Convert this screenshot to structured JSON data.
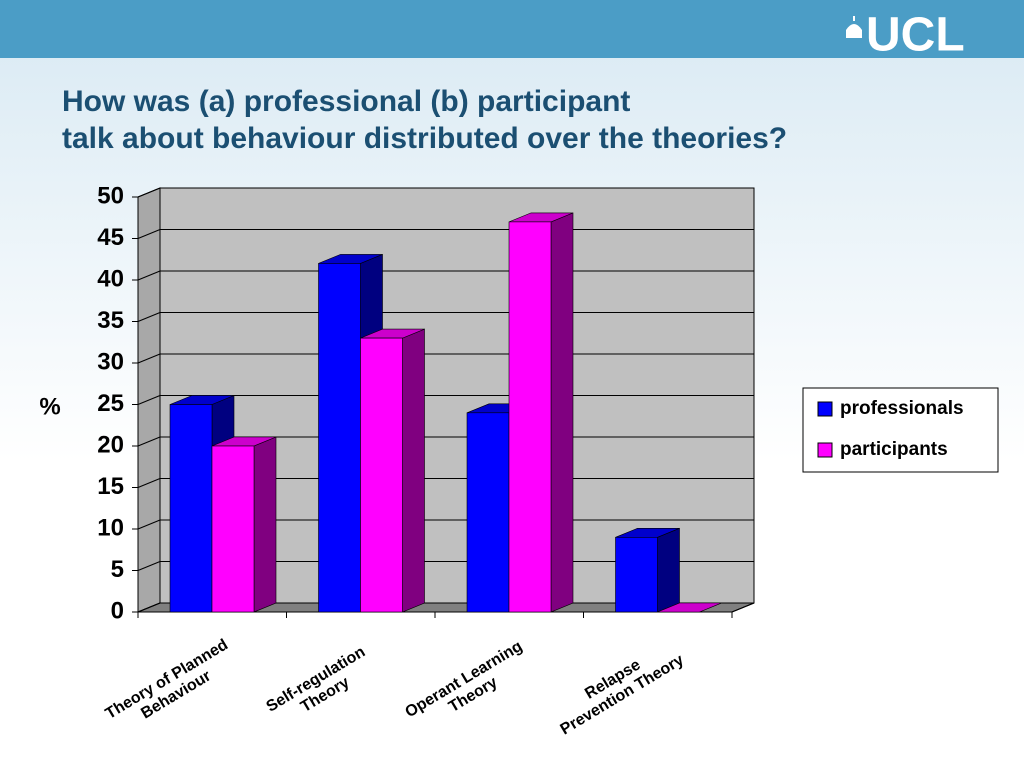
{
  "brand": "UCL",
  "chart_data": {
    "type": "bar",
    "title": "How was (a) professional (b) participant\ntalk about behaviour distributed over the theories?",
    "y_label": "%",
    "categories": [
      "Theory of Planned\nBehaviour",
      "Self-regulation\nTheory",
      "Operant Learning\nTheory",
      "Relapse\nPrevention Theory"
    ],
    "series": [
      {
        "name": "professionals",
        "color": "#0000ff",
        "values": [
          25,
          42,
          24,
          9
        ]
      },
      {
        "name": "participants",
        "color": "#ff00ff",
        "values": [
          20,
          33,
          47,
          0
        ]
      }
    ],
    "ylim": [
      0,
      50
    ],
    "yticks": [
      0,
      5,
      10,
      15,
      20,
      25,
      30,
      35,
      40,
      45,
      50
    ],
    "grid": true,
    "legend": "right"
  }
}
